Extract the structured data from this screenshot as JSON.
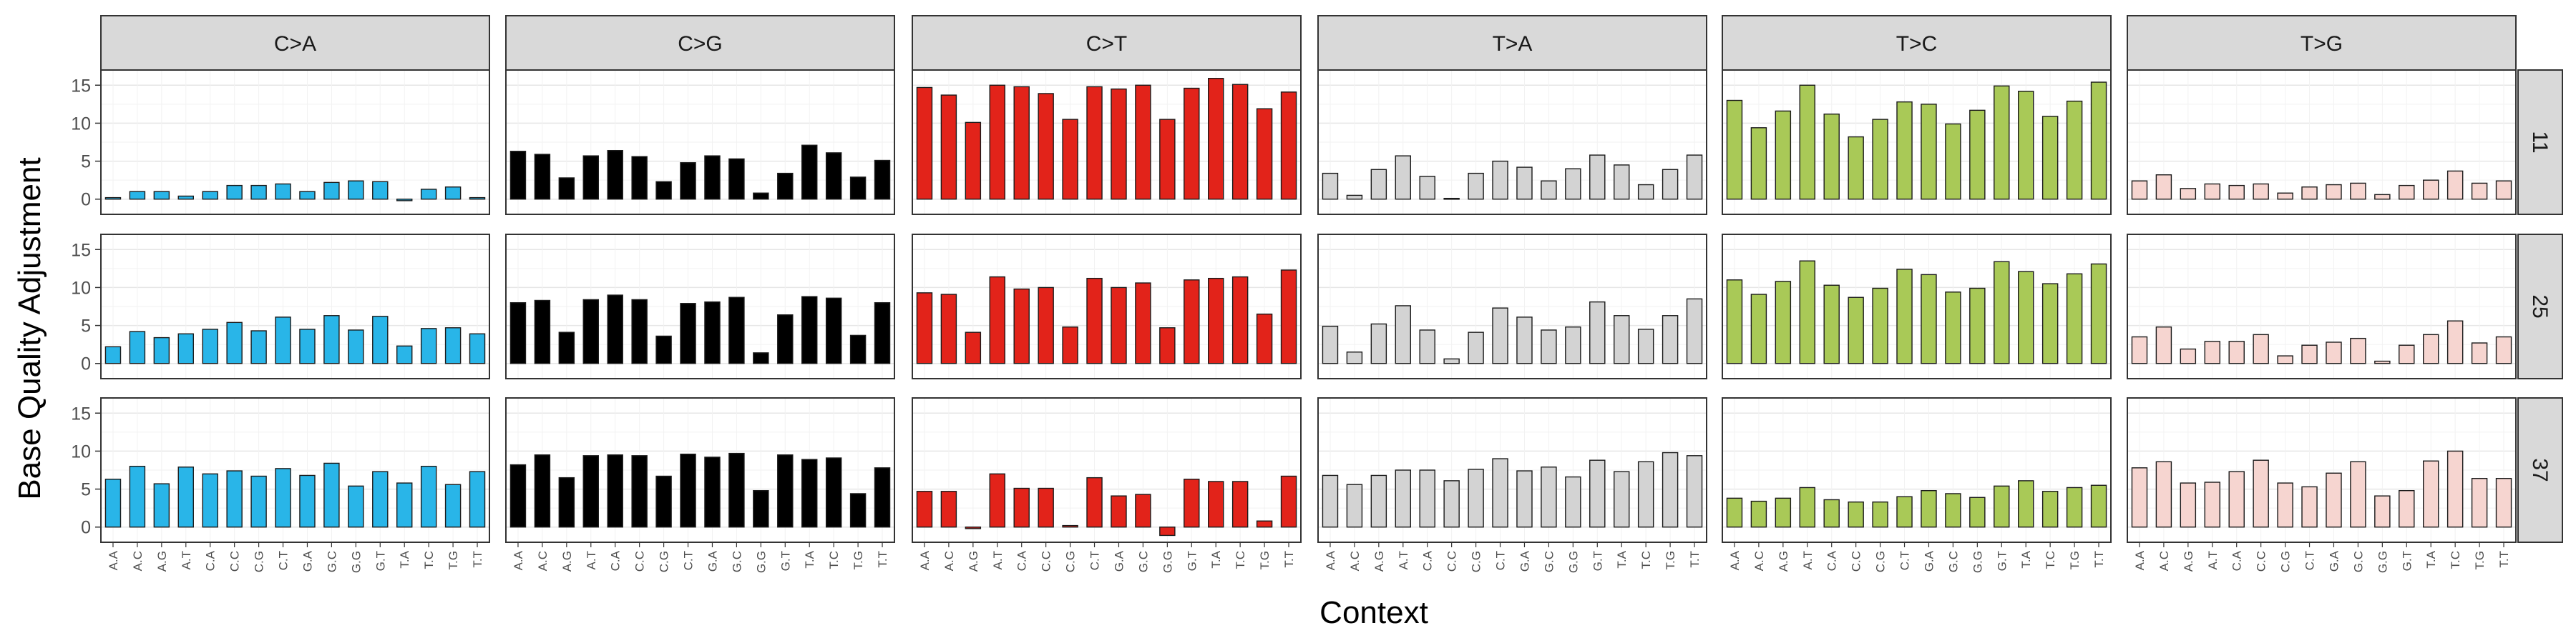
{
  "chart_data": {
    "type": "bar",
    "layout": "facet-grid",
    "xlabel": "Context",
    "ylabel": "Base Quality Adjustment",
    "ylim": [
      -2,
      17
    ],
    "yticks": [
      0,
      5,
      10,
      15
    ],
    "grid": true,
    "legend": "none",
    "categories": [
      "A.A",
      "A.C",
      "A.G",
      "A.T",
      "C.A",
      "C.C",
      "C.G",
      "C.T",
      "G.A",
      "G.C",
      "G.G",
      "G.T",
      "T.A",
      "T.C",
      "T.G",
      "T.T"
    ],
    "columns": [
      {
        "label": "C>A",
        "color": "#29b5e8"
      },
      {
        "label": "C>G",
        "color": "#000000"
      },
      {
        "label": "C>T",
        "color": "#e2231a"
      },
      {
        "label": "T>A",
        "color": "#d3d3d3"
      },
      {
        "label": "T>C",
        "color": "#a9c957"
      },
      {
        "label": "T>G",
        "color": "#f6d5d0"
      }
    ],
    "rows": [
      {
        "label": "11"
      },
      {
        "label": "25"
      },
      {
        "label": "37"
      }
    ],
    "values": {
      "11": {
        "C>A": [
          0.2,
          1.0,
          1.0,
          0.4,
          1.0,
          1.8,
          1.8,
          2.0,
          1.0,
          2.2,
          2.4,
          2.3,
          -0.2,
          1.3,
          1.6,
          0.2
        ],
        "C>G": [
          6.3,
          5.9,
          2.8,
          5.7,
          6.4,
          5.6,
          2.3,
          4.8,
          5.7,
          5.3,
          0.8,
          3.4,
          7.1,
          6.1,
          2.9,
          5.1
        ],
        "C>T": [
          14.7,
          13.7,
          10.1,
          15.0,
          14.8,
          13.9,
          10.5,
          14.8,
          14.5,
          15.0,
          10.5,
          14.6,
          15.9,
          15.1,
          11.9,
          14.1
        ],
        "T>A": [
          3.4,
          0.5,
          3.9,
          5.7,
          3.0,
          0.1,
          3.4,
          5.0,
          4.2,
          2.4,
          4.0,
          5.8,
          4.5,
          1.9,
          3.9,
          5.8
        ],
        "T>C": [
          13.0,
          9.4,
          11.6,
          15.0,
          11.2,
          8.2,
          10.5,
          12.8,
          12.5,
          9.9,
          11.7,
          14.9,
          14.2,
          10.9,
          12.9,
          15.4
        ],
        "T>G": [
          2.4,
          3.2,
          1.4,
          2.0,
          1.8,
          2.0,
          0.8,
          1.6,
          1.9,
          2.1,
          0.6,
          1.8,
          2.5,
          3.7,
          2.1,
          2.4
        ]
      },
      "25": {
        "C>A": [
          2.2,
          4.2,
          3.4,
          3.9,
          4.5,
          5.4,
          4.3,
          6.1,
          4.5,
          6.3,
          4.4,
          6.2,
          2.3,
          4.6,
          4.7,
          3.9
        ],
        "C>G": [
          8.0,
          8.3,
          4.1,
          8.4,
          9.0,
          8.4,
          3.6,
          7.9,
          8.1,
          8.7,
          1.4,
          6.4,
          8.8,
          8.6,
          3.7,
          8.0
        ],
        "C>T": [
          9.3,
          9.1,
          4.1,
          11.4,
          9.8,
          10.0,
          4.8,
          11.2,
          10.0,
          10.6,
          4.7,
          11.0,
          11.2,
          11.4,
          6.5,
          12.3
        ],
        "T>A": [
          4.9,
          1.5,
          5.2,
          7.6,
          4.4,
          0.6,
          4.1,
          7.3,
          6.1,
          4.4,
          4.8,
          8.1,
          6.3,
          4.5,
          6.3,
          8.5
        ],
        "T>C": [
          11.0,
          9.1,
          10.8,
          13.5,
          10.3,
          8.7,
          9.9,
          12.4,
          11.7,
          9.4,
          9.9,
          13.4,
          12.1,
          10.5,
          11.8,
          13.1
        ],
        "T>G": [
          3.5,
          4.8,
          1.9,
          2.9,
          2.9,
          3.8,
          1.0,
          2.4,
          2.8,
          3.3,
          0.3,
          2.4,
          3.8,
          5.6,
          2.7,
          3.5
        ]
      },
      "37": {
        "C>A": [
          6.3,
          8.0,
          5.7,
          7.9,
          7.0,
          7.4,
          6.7,
          7.7,
          6.8,
          8.4,
          5.4,
          7.3,
          5.8,
          8.0,
          5.6,
          7.3
        ],
        "C>G": [
          8.2,
          9.5,
          6.5,
          9.4,
          9.5,
          9.4,
          6.7,
          9.6,
          9.2,
          9.7,
          4.8,
          9.5,
          8.9,
          9.1,
          4.4,
          7.8
        ],
        "C>T": [
          4.7,
          4.7,
          -0.2,
          7.0,
          5.1,
          5.1,
          0.2,
          6.5,
          4.1,
          4.3,
          -1.1,
          6.3,
          6.0,
          6.0,
          0.8,
          6.7
        ],
        "T>A": [
          6.8,
          5.6,
          6.8,
          7.5,
          7.5,
          6.1,
          7.6,
          9.0,
          7.4,
          7.9,
          6.6,
          8.8,
          7.3,
          8.6,
          9.8,
          9.4
        ],
        "T>C": [
          3.8,
          3.4,
          3.8,
          5.2,
          3.6,
          3.3,
          3.3,
          4.0,
          4.8,
          4.4,
          3.9,
          5.4,
          6.1,
          4.7,
          5.2,
          5.5
        ],
        "T>G": [
          7.8,
          8.6,
          5.8,
          5.9,
          7.3,
          8.8,
          5.8,
          5.3,
          7.1,
          8.6,
          4.1,
          4.8,
          8.7,
          10.0,
          6.4,
          6.4
        ]
      }
    }
  }
}
